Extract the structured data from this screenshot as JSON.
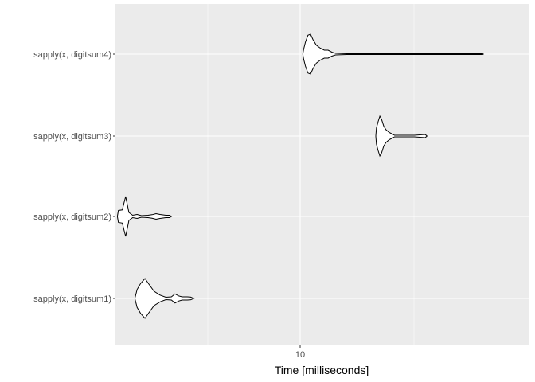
{
  "chart_data": {
    "type": "violin",
    "orientation": "horizontal",
    "title": "",
    "xlabel": "Time [milliseconds]",
    "ylabel": "",
    "x_scale": "log",
    "x_ticks": [
      10
    ],
    "x_tick_labels": [
      "10"
    ],
    "xlim": [
      3.25,
      30
    ],
    "grid": true,
    "legend": "none",
    "colors": {
      "panel": "#ebebeb",
      "grid": "#ffffff",
      "violin_fill": "#ffffff",
      "violin_stroke": "#000000",
      "text": "#4d4d4d"
    },
    "categories": [
      "sapply(x, digitsum1)",
      "sapply(x, digitsum2)",
      "sapply(x, digitsum3)",
      "sapply(x, digitsum4)"
    ],
    "series": [
      {
        "category": "sapply(x, digitsum4)",
        "density": [
          [
            10.15,
            0.0
          ],
          [
            10.2,
            0.25
          ],
          [
            10.3,
            0.6
          ],
          [
            10.45,
            0.95
          ],
          [
            10.6,
            1.0
          ],
          [
            10.75,
            0.72
          ],
          [
            10.95,
            0.45
          ],
          [
            11.2,
            0.3
          ],
          [
            11.45,
            0.2
          ],
          [
            11.7,
            0.2
          ],
          [
            11.95,
            0.1
          ],
          [
            12.2,
            0.04
          ],
          [
            13.0,
            0.02
          ],
          [
            20.0,
            0.02
          ],
          [
            27.9,
            0.02
          ],
          [
            28.0,
            0.0
          ]
        ]
      },
      {
        "category": "sapply(x, digitsum3)",
        "density": [
          [
            15.3,
            0.0
          ],
          [
            15.35,
            0.4
          ],
          [
            15.5,
            0.72
          ],
          [
            15.65,
            1.0
          ],
          [
            15.8,
            0.85
          ],
          [
            16.0,
            0.5
          ],
          [
            16.2,
            0.32
          ],
          [
            16.5,
            0.18
          ],
          [
            16.8,
            0.1
          ],
          [
            17.0,
            0.04
          ],
          [
            17.5,
            0.04
          ],
          [
            19.0,
            0.04
          ],
          [
            20.2,
            0.08
          ],
          [
            20.4,
            0.0
          ]
        ]
      },
      {
        "category": "sapply(x, digitsum2)",
        "density": [
          [
            3.58,
            0.0
          ],
          [
            3.6,
            0.3
          ],
          [
            3.68,
            0.33
          ],
          [
            3.72,
            0.72
          ],
          [
            3.75,
            1.0
          ],
          [
            3.78,
            0.66
          ],
          [
            3.82,
            0.2
          ],
          [
            3.9,
            0.06
          ],
          [
            4.0,
            0.1
          ],
          [
            4.1,
            0.04
          ],
          [
            4.25,
            0.06
          ],
          [
            4.35,
            0.09
          ],
          [
            4.45,
            0.14
          ],
          [
            4.55,
            0.1
          ],
          [
            4.7,
            0.06
          ],
          [
            4.8,
            0.06
          ],
          [
            4.85,
            0.0
          ]
        ]
      },
      {
        "category": "sapply(x, digitsum1)",
        "density": [
          [
            3.95,
            0.0
          ],
          [
            4.0,
            0.45
          ],
          [
            4.08,
            0.75
          ],
          [
            4.18,
            1.0
          ],
          [
            4.28,
            0.7
          ],
          [
            4.4,
            0.36
          ],
          [
            4.55,
            0.17
          ],
          [
            4.7,
            0.06
          ],
          [
            4.85,
            0.08
          ],
          [
            4.95,
            0.23
          ],
          [
            5.05,
            0.13
          ],
          [
            5.15,
            0.08
          ],
          [
            5.3,
            0.08
          ],
          [
            5.4,
            0.07
          ],
          [
            5.5,
            0.0
          ]
        ]
      }
    ]
  }
}
